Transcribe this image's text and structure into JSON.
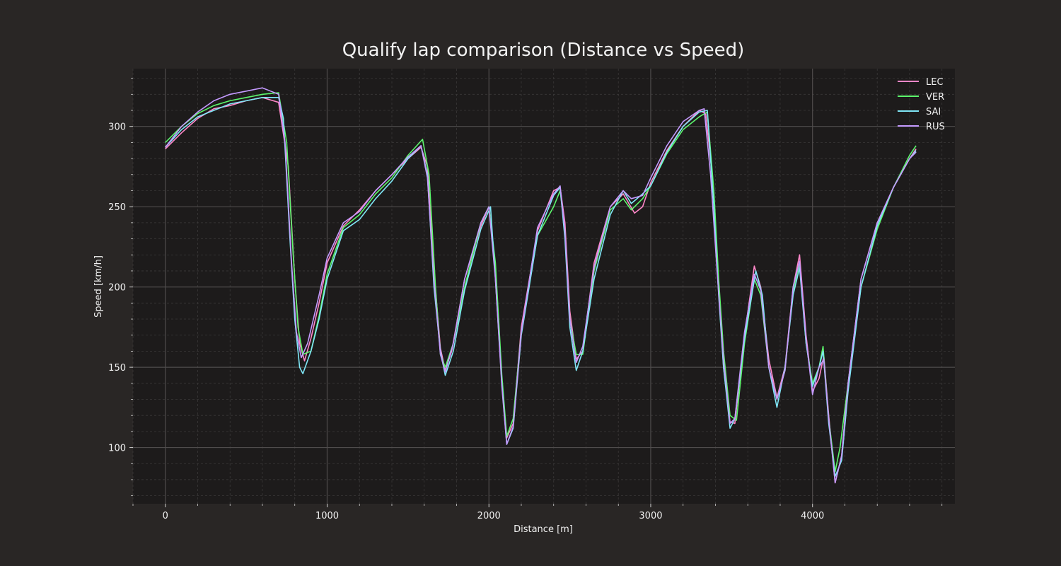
{
  "chart_data": {
    "type": "line",
    "title": "Qualify lap comparison (Distance vs Speed)",
    "xlabel": "Distance [m]",
    "ylabel": "Speed [km/h]",
    "xlim": [
      -200,
      4880
    ],
    "ylim": [
      65,
      336
    ],
    "x_ticks": [
      0,
      1000,
      2000,
      3000,
      4000
    ],
    "y_ticks": [
      100,
      150,
      200,
      250,
      300
    ],
    "grid": true,
    "legend_position": "top-right",
    "series": [
      {
        "name": "LEC",
        "color": "#ff87c8",
        "points": [
          [
            0,
            286
          ],
          [
            100,
            296
          ],
          [
            200,
            305
          ],
          [
            300,
            311
          ],
          [
            400,
            313
          ],
          [
            500,
            316
          ],
          [
            600,
            318
          ],
          [
            700,
            315
          ],
          [
            760,
            275
          ],
          [
            800,
            205
          ],
          [
            830,
            165
          ],
          [
            860,
            154
          ],
          [
            900,
            168
          ],
          [
            950,
            190
          ],
          [
            1000,
            215
          ],
          [
            1100,
            238
          ],
          [
            1200,
            248
          ],
          [
            1300,
            260
          ],
          [
            1400,
            270
          ],
          [
            1500,
            280
          ],
          [
            1580,
            287
          ],
          [
            1620,
            275
          ],
          [
            1660,
            210
          ],
          [
            1700,
            162
          ],
          [
            1730,
            148
          ],
          [
            1770,
            160
          ],
          [
            1850,
            205
          ],
          [
            1950,
            238
          ],
          [
            2000,
            250
          ],
          [
            2040,
            210
          ],
          [
            2080,
            140
          ],
          [
            2110,
            106
          ],
          [
            2150,
            115
          ],
          [
            2200,
            175
          ],
          [
            2300,
            235
          ],
          [
            2400,
            260
          ],
          [
            2440,
            262
          ],
          [
            2470,
            240
          ],
          [
            2500,
            185
          ],
          [
            2540,
            155
          ],
          [
            2580,
            160
          ],
          [
            2650,
            215
          ],
          [
            2750,
            250
          ],
          [
            2830,
            258
          ],
          [
            2900,
            246
          ],
          [
            2950,
            250
          ],
          [
            3000,
            265
          ],
          [
            3100,
            285
          ],
          [
            3200,
            300
          ],
          [
            3300,
            310
          ],
          [
            3340,
            308
          ],
          [
            3380,
            270
          ],
          [
            3420,
            200
          ],
          [
            3450,
            150
          ],
          [
            3490,
            116
          ],
          [
            3520,
            115
          ],
          [
            3580,
            170
          ],
          [
            3640,
            213
          ],
          [
            3680,
            200
          ],
          [
            3730,
            155
          ],
          [
            3780,
            131
          ],
          [
            3830,
            150
          ],
          [
            3880,
            200
          ],
          [
            3920,
            220
          ],
          [
            3960,
            170
          ],
          [
            4000,
            135
          ],
          [
            4040,
            143
          ],
          [
            4070,
            157
          ],
          [
            4100,
            120
          ],
          [
            4140,
            78
          ],
          [
            4180,
            95
          ],
          [
            4220,
            140
          ],
          [
            4300,
            205
          ],
          [
            4400,
            240
          ],
          [
            4500,
            262
          ],
          [
            4600,
            280
          ],
          [
            4640,
            286
          ]
        ]
      },
      {
        "name": "VER",
        "color": "#5cf56c",
        "points": [
          [
            0,
            290
          ],
          [
            100,
            300
          ],
          [
            200,
            308
          ],
          [
            300,
            313
          ],
          [
            400,
            316
          ],
          [
            500,
            318
          ],
          [
            600,
            320
          ],
          [
            700,
            321
          ],
          [
            750,
            290
          ],
          [
            790,
            220
          ],
          [
            820,
            175
          ],
          [
            850,
            158
          ],
          [
            900,
            160
          ],
          [
            950,
            182
          ],
          [
            1000,
            208
          ],
          [
            1100,
            237
          ],
          [
            1200,
            245
          ],
          [
            1300,
            258
          ],
          [
            1400,
            268
          ],
          [
            1500,
            282
          ],
          [
            1590,
            292
          ],
          [
            1630,
            270
          ],
          [
            1670,
            200
          ],
          [
            1700,
            158
          ],
          [
            1730,
            150
          ],
          [
            1780,
            165
          ],
          [
            1850,
            200
          ],
          [
            1950,
            240
          ],
          [
            2000,
            250
          ],
          [
            2040,
            215
          ],
          [
            2080,
            145
          ],
          [
            2110,
            107
          ],
          [
            2150,
            118
          ],
          [
            2200,
            172
          ],
          [
            2300,
            232
          ],
          [
            2400,
            250
          ],
          [
            2440,
            260
          ],
          [
            2470,
            235
          ],
          [
            2500,
            180
          ],
          [
            2540,
            158
          ],
          [
            2580,
            158
          ],
          [
            2650,
            210
          ],
          [
            2750,
            248
          ],
          [
            2830,
            255
          ],
          [
            2880,
            248
          ],
          [
            2950,
            255
          ],
          [
            3000,
            263
          ],
          [
            3100,
            283
          ],
          [
            3200,
            298
          ],
          [
            3300,
            306
          ],
          [
            3350,
            309
          ],
          [
            3390,
            260
          ],
          [
            3420,
            205
          ],
          [
            3450,
            160
          ],
          [
            3490,
            120
          ],
          [
            3530,
            117
          ],
          [
            3580,
            165
          ],
          [
            3640,
            205
          ],
          [
            3680,
            195
          ],
          [
            3730,
            150
          ],
          [
            3780,
            130
          ],
          [
            3830,
            148
          ],
          [
            3880,
            198
          ],
          [
            3920,
            215
          ],
          [
            3960,
            165
          ],
          [
            4000,
            140
          ],
          [
            4040,
            150
          ],
          [
            4065,
            163
          ],
          [
            4100,
            118
          ],
          [
            4140,
            85
          ],
          [
            4170,
            100
          ],
          [
            4220,
            140
          ],
          [
            4300,
            200
          ],
          [
            4400,
            236
          ],
          [
            4500,
            262
          ],
          [
            4600,
            282
          ],
          [
            4640,
            288
          ]
        ]
      },
      {
        "name": "SAI",
        "color": "#7fe6f6",
        "points": [
          [
            0,
            287
          ],
          [
            100,
            298
          ],
          [
            200,
            306
          ],
          [
            300,
            310
          ],
          [
            400,
            314
          ],
          [
            500,
            316
          ],
          [
            600,
            318
          ],
          [
            700,
            318
          ],
          [
            730,
            305
          ],
          [
            770,
            230
          ],
          [
            800,
            180
          ],
          [
            830,
            150
          ],
          [
            850,
            146
          ],
          [
            900,
            160
          ],
          [
            950,
            180
          ],
          [
            1000,
            205
          ],
          [
            1100,
            235
          ],
          [
            1200,
            242
          ],
          [
            1300,
            255
          ],
          [
            1400,
            266
          ],
          [
            1500,
            280
          ],
          [
            1580,
            288
          ],
          [
            1620,
            270
          ],
          [
            1660,
            200
          ],
          [
            1700,
            160
          ],
          [
            1730,
            145
          ],
          [
            1780,
            160
          ],
          [
            1850,
            198
          ],
          [
            1950,
            236
          ],
          [
            2010,
            250
          ],
          [
            2040,
            205
          ],
          [
            2080,
            140
          ],
          [
            2110,
            102
          ],
          [
            2150,
            112
          ],
          [
            2200,
            170
          ],
          [
            2300,
            232
          ],
          [
            2400,
            257
          ],
          [
            2440,
            262
          ],
          [
            2470,
            230
          ],
          [
            2500,
            175
          ],
          [
            2540,
            148
          ],
          [
            2580,
            160
          ],
          [
            2650,
            205
          ],
          [
            2750,
            245
          ],
          [
            2830,
            260
          ],
          [
            2880,
            252
          ],
          [
            2950,
            258
          ],
          [
            3000,
            263
          ],
          [
            3100,
            284
          ],
          [
            3200,
            300
          ],
          [
            3300,
            309
          ],
          [
            3350,
            310
          ],
          [
            3390,
            250
          ],
          [
            3420,
            195
          ],
          [
            3450,
            150
          ],
          [
            3490,
            112
          ],
          [
            3520,
            118
          ],
          [
            3580,
            168
          ],
          [
            3650,
            210
          ],
          [
            3690,
            195
          ],
          [
            3730,
            150
          ],
          [
            3780,
            125
          ],
          [
            3830,
            150
          ],
          [
            3880,
            195
          ],
          [
            3920,
            212
          ],
          [
            3960,
            165
          ],
          [
            4000,
            138
          ],
          [
            4040,
            150
          ],
          [
            4065,
            160
          ],
          [
            4100,
            115
          ],
          [
            4140,
            82
          ],
          [
            4180,
            92
          ],
          [
            4220,
            135
          ],
          [
            4300,
            200
          ],
          [
            4400,
            238
          ],
          [
            4500,
            262
          ],
          [
            4600,
            280
          ],
          [
            4640,
            285
          ]
        ]
      },
      {
        "name": "RUS",
        "color": "#c49aff",
        "points": [
          [
            0,
            287
          ],
          [
            100,
            300
          ],
          [
            200,
            309
          ],
          [
            300,
            316
          ],
          [
            400,
            320
          ],
          [
            500,
            322
          ],
          [
            600,
            324
          ],
          [
            700,
            320
          ],
          [
            740,
            290
          ],
          [
            780,
            215
          ],
          [
            810,
            172
          ],
          [
            840,
            156
          ],
          [
            880,
            165
          ],
          [
            950,
            195
          ],
          [
            1000,
            218
          ],
          [
            1100,
            240
          ],
          [
            1200,
            247
          ],
          [
            1300,
            260
          ],
          [
            1400,
            270
          ],
          [
            1500,
            281
          ],
          [
            1580,
            288
          ],
          [
            1620,
            268
          ],
          [
            1660,
            205
          ],
          [
            1700,
            158
          ],
          [
            1730,
            147
          ],
          [
            1780,
            165
          ],
          [
            1850,
            205
          ],
          [
            1950,
            240
          ],
          [
            2000,
            250
          ],
          [
            2040,
            205
          ],
          [
            2080,
            138
          ],
          [
            2110,
            102
          ],
          [
            2150,
            113
          ],
          [
            2200,
            172
          ],
          [
            2300,
            237
          ],
          [
            2400,
            258
          ],
          [
            2440,
            263
          ],
          [
            2470,
            235
          ],
          [
            2500,
            180
          ],
          [
            2540,
            153
          ],
          [
            2580,
            163
          ],
          [
            2650,
            212
          ],
          [
            2750,
            250
          ],
          [
            2830,
            260
          ],
          [
            2880,
            255
          ],
          [
            2950,
            257
          ],
          [
            3000,
            268
          ],
          [
            3100,
            288
          ],
          [
            3200,
            303
          ],
          [
            3300,
            310
          ],
          [
            3330,
            311
          ],
          [
            3370,
            270
          ],
          [
            3410,
            210
          ],
          [
            3450,
            155
          ],
          [
            3490,
            115
          ],
          [
            3520,
            118
          ],
          [
            3580,
            172
          ],
          [
            3640,
            208
          ],
          [
            3680,
            198
          ],
          [
            3730,
            150
          ],
          [
            3780,
            130
          ],
          [
            3830,
            148
          ],
          [
            3880,
            200
          ],
          [
            3920,
            216
          ],
          [
            3960,
            168
          ],
          [
            4000,
            133
          ],
          [
            4040,
            150
          ],
          [
            4070,
            155
          ],
          [
            4100,
            118
          ],
          [
            4140,
            78
          ],
          [
            4180,
            95
          ],
          [
            4220,
            140
          ],
          [
            4300,
            205
          ],
          [
            4400,
            240
          ],
          [
            4500,
            262
          ],
          [
            4600,
            280
          ],
          [
            4640,
            284
          ]
        ]
      }
    ]
  }
}
